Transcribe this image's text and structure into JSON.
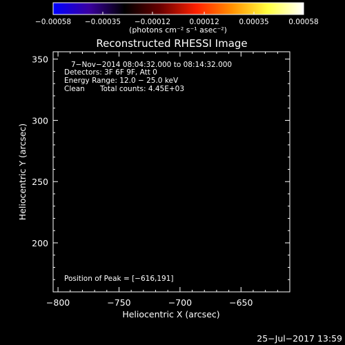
{
  "chart_data": {
    "type": "heatmap",
    "title": "Reconstructed RHESSI Image",
    "xlabel": "Heliocentric X (arcsec)",
    "ylabel": "Heliocentric Y (arcsec)",
    "xlim": [
      -804,
      -610
    ],
    "ylim": [
      160,
      356
    ],
    "x_ticks": [
      -800,
      -750,
      -700,
      -650
    ],
    "x_tick_labels": [
      "−800",
      "−750",
      "−700",
      "−650"
    ],
    "y_ticks": [
      200,
      250,
      300,
      350
    ],
    "y_tick_labels": [
      "200",
      "250",
      "300",
      "350"
    ],
    "colorbar": {
      "range": [
        -0.00058,
        0.00058
      ],
      "ticks": [
        -0.00058,
        -0.00035,
        -0.00012,
        0.00012,
        0.00035,
        0.00058
      ],
      "tick_labels": [
        "−0.00058",
        "−0.00035",
        "−0.00012",
        "0.00012",
        "0.00035",
        "0.00058"
      ],
      "unit_label": "(photons cm⁻² s⁻¹ asec⁻²)",
      "colors": [
        "#0000ff",
        "#3a00a0",
        "#000000",
        "#6a0000",
        "#ff2000",
        "#ff9000",
        "#ffff40",
        "#ffffff"
      ]
    },
    "annotations": {
      "time": "7−Nov−2014 08:04:32.000 to 08:14:32.000",
      "detectors": "Detectors: 3F 6F 9F, Att 0",
      "energy": "Energy Range: 12.0 − 25.0 keV",
      "method": "Clean",
      "counts": "Total counts: 4.45E+03",
      "peak": "Position of Peak = [−616,191]"
    },
    "peak_position": [
      -616,
      191
    ],
    "footer_date": "25−Jul−2017 13:59"
  }
}
